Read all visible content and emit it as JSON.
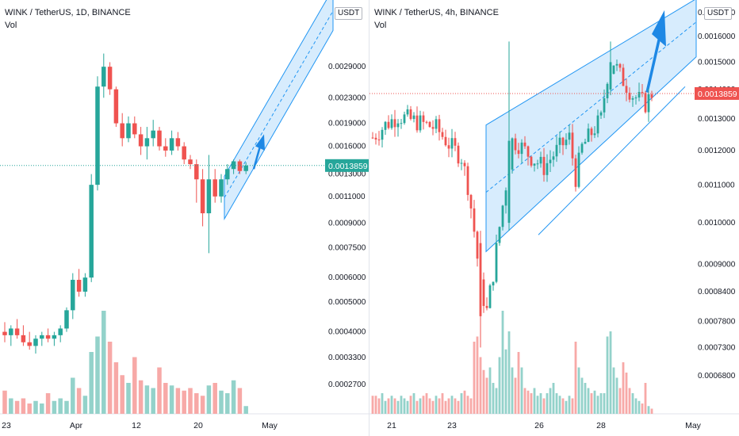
{
  "chart_data": [
    {
      "type": "candlestick",
      "title": "WINK / TetherUS, 1D, BINANCE",
      "subtitle": "Vol",
      "currency": "USDT",
      "last_price": "0.0013859",
      "last_price_color": "#26a69a",
      "y_scale": "log",
      "ylim": [
        0.00023,
        0.0045
      ],
      "y_ticks": [
        "0.0029000",
        "0.0023000",
        "0.0019000",
        "0.0016000",
        "0.0013000",
        "0.0011000",
        "0.0009000",
        "0.0007500",
        "0.0006000",
        "0.0005000",
        "0.0004000",
        "0.0003300",
        "0.0002700"
      ],
      "x_ticks": [
        "23",
        "Apr",
        "12",
        "20",
        "May"
      ],
      "candles": [
        [
          0.0004,
          0.00043,
          0.00037,
          0.00039
        ],
        [
          0.00039,
          0.00042,
          0.00036,
          0.00041
        ],
        [
          0.00041,
          0.00044,
          0.00038,
          0.00039
        ],
        [
          0.00039,
          0.00042,
          0.00036,
          0.00037
        ],
        [
          0.00037,
          0.0004,
          0.00035,
          0.00036
        ],
        [
          0.00036,
          0.00039,
          0.00034,
          0.00038
        ],
        [
          0.00038,
          0.0004,
          0.00036,
          0.00039
        ],
        [
          0.00039,
          0.00041,
          0.00037,
          0.00038
        ],
        [
          0.00038,
          0.0004,
          0.00036,
          0.00039
        ],
        [
          0.00039,
          0.00042,
          0.00037,
          0.00041
        ],
        [
          0.00041,
          0.00048,
          0.0004,
          0.00047
        ],
        [
          0.00047,
          0.00062,
          0.00044,
          0.00059
        ],
        [
          0.00059,
          0.00064,
          0.00052,
          0.00054
        ],
        [
          0.00054,
          0.00062,
          0.00052,
          0.0006
        ],
        [
          0.0006,
          0.0013,
          0.00058,
          0.0012
        ],
        [
          0.0012,
          0.0027,
          0.00115,
          0.0025
        ],
        [
          0.0025,
          0.0032,
          0.0023,
          0.0029
        ],
        [
          0.0029,
          0.003,
          0.00235,
          0.00245
        ],
        [
          0.00245,
          0.0025,
          0.00185,
          0.0019
        ],
        [
          0.0019,
          0.00205,
          0.0016,
          0.0017
        ],
        [
          0.0017,
          0.002,
          0.00165,
          0.0019
        ],
        [
          0.0019,
          0.002,
          0.0017,
          0.00175
        ],
        [
          0.00175,
          0.00185,
          0.0015,
          0.0016
        ],
        [
          0.0016,
          0.00185,
          0.00145,
          0.0017
        ],
        [
          0.0017,
          0.00195,
          0.0016,
          0.0018
        ],
        [
          0.0018,
          0.00185,
          0.00155,
          0.0016
        ],
        [
          0.0016,
          0.0017,
          0.00148,
          0.00155
        ],
        [
          0.00155,
          0.0018,
          0.0015,
          0.0017
        ],
        [
          0.0017,
          0.00178,
          0.00155,
          0.0016
        ],
        [
          0.0016,
          0.00165,
          0.0014,
          0.00145
        ],
        [
          0.00145,
          0.0015,
          0.00135,
          0.0014
        ],
        [
          0.0014,
          0.00145,
          0.00105,
          0.00125
        ],
        [
          0.00125,
          0.00135,
          0.00088,
          0.00097
        ],
        [
          0.00097,
          0.0015,
          0.00072,
          0.00125
        ],
        [
          0.00125,
          0.00135,
          0.00105,
          0.0011
        ],
        [
          0.0011,
          0.0013,
          0.00105,
          0.00125
        ],
        [
          0.00125,
          0.0014,
          0.0012,
          0.00135
        ],
        [
          0.00135,
          0.00145,
          0.0013,
          0.00143
        ],
        [
          0.00143,
          0.00145,
          0.0013,
          0.00133
        ],
        [
          0.00133,
          0.00142,
          0.0013,
          0.001386
        ]
      ],
      "volume": [
        9,
        6,
        5,
        6,
        4,
        5,
        4,
        8,
        5,
        6,
        5,
        14,
        10,
        7,
        24,
        30,
        40,
        28,
        20,
        15,
        12,
        22,
        13,
        11,
        10,
        18,
        12,
        11,
        10,
        9,
        10,
        8,
        7,
        11,
        12,
        9,
        8,
        13,
        10,
        3
      ],
      "channel": {
        "lower_start": [
          31,
          0.00093
        ],
        "lower_end": [
          42,
          0.0042
        ],
        "width_factor": 1.3
      }
    },
    {
      "type": "candlestick",
      "title": "WINK / TetherUS, 4h, BINANCE",
      "subtitle": "Vol",
      "currency": "USDT",
      "last_price": "0.0013859",
      "last_price_color": "#ef5350",
      "y_scale": "log",
      "ylim": [
        0.00063,
        0.00172
      ],
      "y_ticks": [
        "0.0017000",
        "0.0016000",
        "0.0015000",
        "0.0014000",
        "0.0013000",
        "0.0012000",
        "0.0011000",
        "0.0010000",
        "0.0009000",
        "0.0008400",
        "0.0007800",
        "0.0007300",
        "0.0006800"
      ],
      "x_ticks": [
        "21",
        "23",
        "26",
        "28",
        "May"
      ],
      "volume": [
        7,
        7,
        6,
        8,
        5,
        6,
        7,
        6,
        5,
        7,
        6,
        5,
        7,
        8,
        5,
        6,
        7,
        8,
        6,
        5,
        7,
        6,
        8,
        5,
        6,
        7,
        6,
        5,
        8,
        9,
        7,
        6,
        28,
        30,
        22,
        17,
        14,
        18,
        12,
        10,
        22,
        40,
        25,
        32,
        18,
        14,
        24,
        18,
        10,
        9,
        8,
        10,
        7,
        8,
        6,
        8,
        10,
        12,
        8,
        7,
        6,
        5,
        7,
        6,
        28,
        18,
        14,
        12,
        10,
        8,
        9,
        7,
        8,
        8,
        30,
        32,
        18,
        14,
        10,
        20,
        16,
        10,
        8,
        6,
        5,
        4,
        12,
        3,
        2
      ]
    }
  ]
}
